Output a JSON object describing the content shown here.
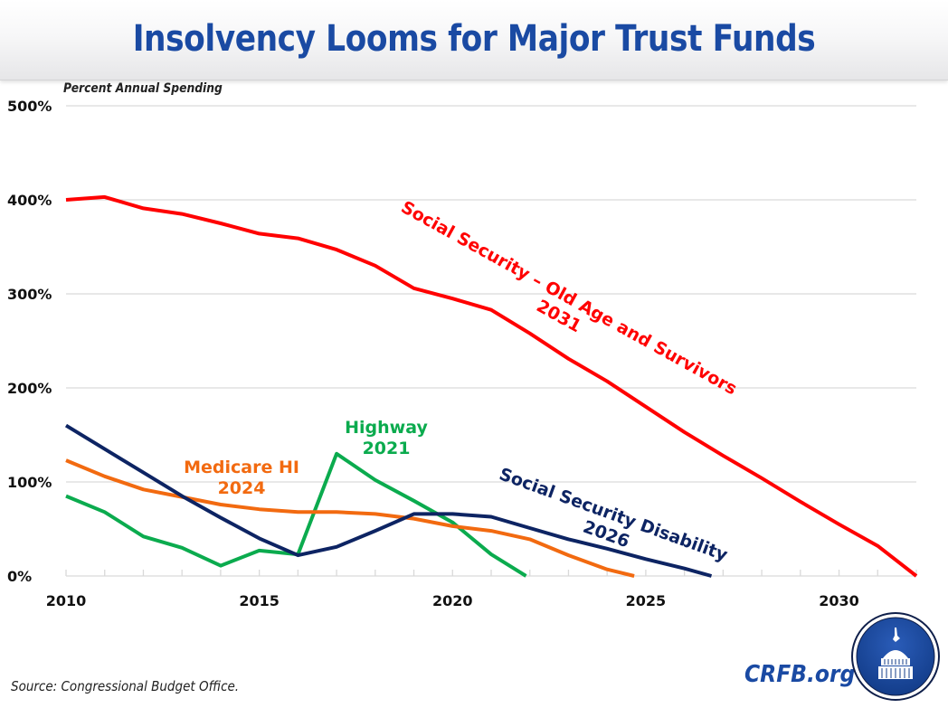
{
  "header": {
    "title": "Insolvency Looms for Major Trust Funds"
  },
  "footer": {
    "source": "Source: Congressional Budget Office.",
    "brand": "CRFB.org",
    "logo_icon": "capitol-dome-logo-icon"
  },
  "chart_data": {
    "type": "line",
    "title": "Insolvency Looms for Major Trust Funds",
    "ylabel": "Percent Annual Spending",
    "xlabel": "",
    "xlim": [
      2010,
      2032
    ],
    "ylim": [
      0,
      500
    ],
    "x_ticks": [
      2010,
      2015,
      2020,
      2025,
      2030
    ],
    "x_tick_labels": [
      "2010",
      "2015",
      "2020",
      "2025",
      "2030"
    ],
    "y_ticks": [
      0,
      100,
      200,
      300,
      400,
      500
    ],
    "y_tick_labels": [
      "0%",
      "100%",
      "200%",
      "300%",
      "400%",
      "500%"
    ],
    "grid": "horizontal",
    "legend": "none (direct labels)",
    "series": [
      {
        "name": "Social Security – Old Age and Survivors",
        "insolvency_year": "2031",
        "color": "#ff0000",
        "x": [
          2010,
          2011,
          2012,
          2013,
          2014,
          2015,
          2016,
          2017,
          2018,
          2019,
          2020,
          2021,
          2022,
          2023,
          2024,
          2025,
          2026,
          2027,
          2028,
          2029,
          2030,
          2031,
          2032
        ],
        "values": [
          400,
          403,
          391,
          385,
          375,
          364,
          359,
          347,
          330,
          306,
          295,
          283,
          258,
          231,
          207,
          180,
          153,
          128,
          104,
          79,
          55,
          32,
          0
        ]
      },
      {
        "name": "Social Security Disability",
        "insolvency_year": "2026",
        "color": "#0d2463",
        "x": [
          2010,
          2011,
          2012,
          2013,
          2014,
          2015,
          2016,
          2017,
          2018,
          2019,
          2020,
          2021,
          2022,
          2023,
          2024,
          2025,
          2026,
          2026.7
        ],
        "values": [
          160,
          135,
          110,
          85,
          62,
          40,
          22,
          31,
          48,
          66,
          66,
          63,
          51,
          39,
          29,
          18,
          8,
          0
        ]
      },
      {
        "name": "Medicare HI",
        "insolvency_year": "2024",
        "color": "#f26a10",
        "x": [
          2010,
          2011,
          2012,
          2013,
          2014,
          2015,
          2016,
          2017,
          2018,
          2019,
          2020,
          2021,
          2022,
          2023,
          2024,
          2024.7
        ],
        "values": [
          123,
          106,
          92,
          84,
          76,
          71,
          68,
          68,
          66,
          61,
          53,
          48,
          39,
          22,
          7,
          0
        ]
      },
      {
        "name": "Highway",
        "insolvency_year": "2021",
        "color": "#0bab4e",
        "x": [
          2010,
          2011,
          2012,
          2013,
          2014,
          2015,
          2016,
          2017,
          2018,
          2019,
          2020,
          2021,
          2021.9
        ],
        "values": [
          85,
          68,
          42,
          30,
          11,
          27,
          23,
          130,
          102,
          80,
          57,
          23,
          0
        ]
      }
    ],
    "annotations": [
      {
        "series": "Social Security – Old Age and Survivors",
        "lines": [
          "Social Security – Old Age and Survivors",
          "2031"
        ]
      },
      {
        "series": "Highway",
        "lines": [
          "Highway",
          "2021"
        ]
      },
      {
        "series": "Medicare HI",
        "lines": [
          "Medicare HI",
          "2024"
        ]
      },
      {
        "series": "Social Security Disability",
        "lines": [
          "Social Security Disability",
          "2026"
        ]
      }
    ]
  }
}
